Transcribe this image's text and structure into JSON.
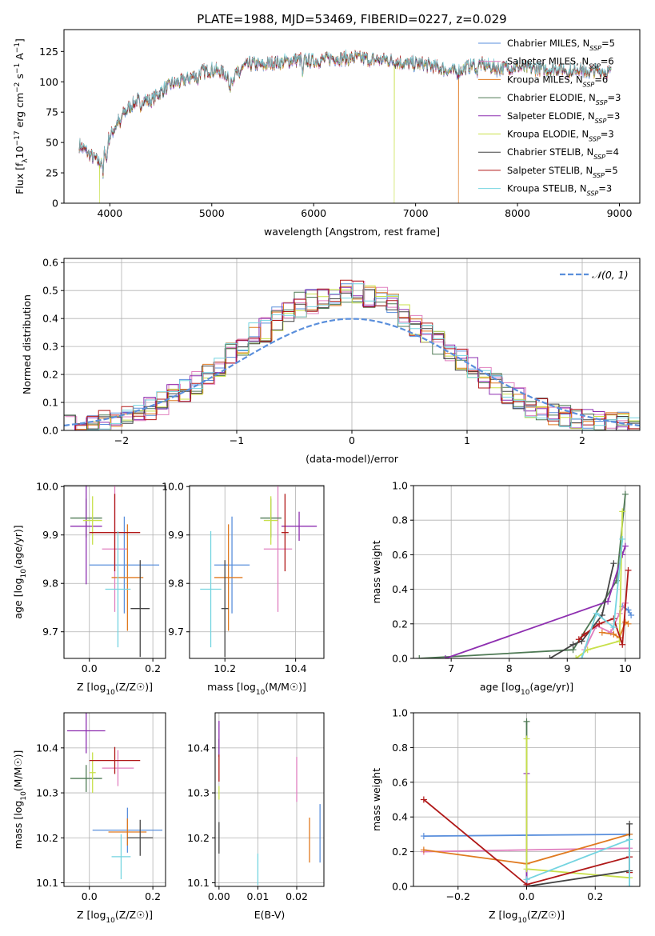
{
  "figure_title": "PLATE=1988, MJD=53469, FIBERID=0227, z=0.029",
  "colors": {
    "Chabrier MILES": "#5a8fdc",
    "Salpeter MILES": "#e07fbf",
    "Kroupa MILES": "#e07a20",
    "Chabrier ELODIE": "#4f7a55",
    "Salpeter ELODIE": "#8e2fb0",
    "Kroupa ELODIE": "#c8e04a",
    "Chabrier STELIB": "#444444",
    "Salpeter STELIB": "#b01818",
    "Kroupa STELIB": "#74d4e0",
    "gaussian": "#5a8fdc"
  },
  "chart_data": [
    {
      "id": "spectrum",
      "type": "line",
      "title": "",
      "xlabel": "wavelength [Angstrom, rest frame]",
      "ylabel": "Flux [f_λ 10^-17 erg cm^-2 s^-1 A^-1]",
      "xlim": [
        3550,
        9200
      ],
      "ylim": [
        0,
        143
      ],
      "xticks": [
        4000,
        5000,
        6000,
        7000,
        8000,
        9000
      ],
      "yticks": [
        0,
        25,
        50,
        75,
        100,
        125
      ],
      "legend_position": "top-right",
      "legend": [
        {
          "name": "Chabrier MILES",
          "label_main": "Chabrier MILES, N",
          "label_sub": "SSP",
          "label_tail": "=5"
        },
        {
          "name": "Salpeter MILES",
          "label_main": "Salpeter MILES, N",
          "label_sub": "SSP",
          "label_tail": "=6"
        },
        {
          "name": "Kroupa MILES",
          "label_main": "Kroupa MILES, N",
          "label_sub": "SSP",
          "label_tail": "=6"
        },
        {
          "name": "Chabrier ELODIE",
          "label_main": "Chabrier ELODIE, N",
          "label_sub": "SSP",
          "label_tail": "=3"
        },
        {
          "name": "Salpeter ELODIE",
          "label_main": "Salpeter ELODIE, N",
          "label_sub": "SSP",
          "label_tail": "=3"
        },
        {
          "name": "Kroupa ELODIE",
          "label_main": "Kroupa ELODIE, N",
          "label_sub": "SSP",
          "label_tail": "=3"
        },
        {
          "name": "Chabrier STELIB",
          "label_main": "Chabrier STELIB, N",
          "label_sub": "SSP",
          "label_tail": "=4"
        },
        {
          "name": "Salpeter STELIB",
          "label_main": "Salpeter STELIB, N",
          "label_sub": "SSP",
          "label_tail": "=5"
        },
        {
          "name": "Kroupa STELIB",
          "label_main": "Kroupa STELIB, N",
          "label_sub": "SSP",
          "label_tail": "=3"
        }
      ],
      "continuum": {
        "x": [
          3700,
          3800,
          3900,
          4000,
          4100,
          4200,
          4300,
          4400,
          4500,
          4600,
          4700,
          4800,
          4900,
          5000,
          5100,
          5200,
          5300,
          5400,
          5500,
          5600,
          5700,
          5800,
          5900,
          6000,
          6100,
          6200,
          6300,
          6400,
          6500,
          6600,
          6700,
          6800,
          6900,
          7000,
          7100,
          7200,
          7300,
          7400,
          7500,
          7600,
          7700,
          7800,
          7900,
          8000,
          8100,
          8200,
          8300,
          8400,
          8500,
          8600,
          8700,
          8800,
          8900
        ],
        "y": [
          48,
          40,
          33,
          55,
          70,
          80,
          86,
          84,
          92,
          98,
          100,
          104,
          108,
          110,
          108,
          103,
          112,
          115,
          113,
          116,
          116,
          118,
          118,
          117,
          118,
          120,
          119,
          120,
          119,
          118,
          118,
          117,
          115,
          115,
          114,
          112,
          110,
          108,
          112,
          115,
          113,
          111,
          112,
          112,
          111,
          111,
          110,
          111,
          110,
          111,
          108,
          109,
          108
        ]
      },
      "drops": [
        {
          "series": "Kroupa ELODIE",
          "x": 3900
        },
        {
          "series": "Kroupa ELODIE",
          "x": 6790
        },
        {
          "series": "Kroupa MILES",
          "x": 7420
        }
      ]
    },
    {
      "id": "residuals",
      "type": "histogram",
      "title": "",
      "xlabel": "(data-model)/error",
      "ylabel": "Normed distribution",
      "xlim": [
        -2.5,
        2.5
      ],
      "ylim": [
        0,
        0.615
      ],
      "xticks": [
        -2,
        -1,
        0,
        1,
        2
      ],
      "yticks": [
        0.0,
        0.1,
        0.2,
        0.3,
        0.4,
        0.5,
        0.6
      ],
      "grid": true,
      "bin_width": 0.1,
      "bins_from": -2.5,
      "legend_position": "top-right",
      "legend_label": "𝒩(0, 1)",
      "gaussian": {
        "mu": 0,
        "sigma": 1
      },
      "series": [
        {
          "name": "Chabrier MILES",
          "shift": 0.02
        },
        {
          "name": "Salpeter MILES",
          "shift": 0.05
        },
        {
          "name": "Kroupa MILES",
          "shift": 0.03
        },
        {
          "name": "Chabrier ELODIE",
          "shift": 0.0
        },
        {
          "name": "Salpeter ELODIE",
          "shift": -0.03
        },
        {
          "name": "Kroupa ELODIE",
          "shift": 0.01
        },
        {
          "name": "Chabrier STELIB",
          "shift": -0.01
        },
        {
          "name": "Salpeter STELIB",
          "shift": 0.0
        },
        {
          "name": "Kroupa STELIB",
          "shift": 0.02
        }
      ],
      "base_profile": [
        0.015,
        0.02,
        0.025,
        0.03,
        0.04,
        0.05,
        0.065,
        0.08,
        0.1,
        0.12,
        0.14,
        0.17,
        0.2,
        0.23,
        0.28,
        0.29,
        0.34,
        0.36,
        0.4,
        0.42,
        0.45,
        0.46,
        0.47,
        0.49,
        0.5,
        0.49,
        0.48,
        0.47,
        0.45,
        0.41,
        0.37,
        0.35,
        0.31,
        0.28,
        0.25,
        0.22,
        0.19,
        0.16,
        0.13,
        0.11,
        0.09,
        0.075,
        0.06,
        0.05,
        0.04,
        0.035,
        0.03,
        0.025,
        0.02,
        0.018
      ]
    },
    {
      "id": "age-vs-Z",
      "type": "errorbar",
      "xlabel": "Z [log10(Z/Z☉)]",
      "ylabel": "age  [log10(age/yr)]",
      "xlim": [
        -0.08,
        0.24
      ],
      "ylim": [
        9.645,
        10.002
      ],
      "xticks": [
        0.0,
        0.2
      ],
      "yticks": [
        9.7,
        9.8,
        9.9,
        10.0
      ],
      "grid": true,
      "points": [
        {
          "series": "Chabrier MILES",
          "x": 0.11,
          "y": 9.838,
          "xerr": 0.11,
          "yerr": 0.1
        },
        {
          "series": "Salpeter MILES",
          "x": 0.08,
          "y": 9.871,
          "xerr": 0.04,
          "yerr": 0.13
        },
        {
          "series": "Kroupa MILES",
          "x": 0.12,
          "y": 9.812,
          "xerr": 0.05,
          "yerr": 0.11
        },
        {
          "series": "Chabrier ELODIE",
          "x": -0.01,
          "y": 9.935,
          "xerr": 0.05,
          "yerr": 0.04
        },
        {
          "series": "Salpeter ELODIE",
          "x": -0.01,
          "y": 9.918,
          "xerr": 0.05,
          "yerr": 0.12
        },
        {
          "series": "Kroupa ELODIE",
          "x": 0.01,
          "y": 9.93,
          "xerr": 0.03,
          "yerr": 0.05
        },
        {
          "series": "Chabrier STELIB",
          "x": 0.16,
          "y": 9.748,
          "xerr": 0.03,
          "yerr": 0.1
        },
        {
          "series": "Salpeter STELIB",
          "x": 0.08,
          "y": 9.905,
          "xerr": 0.08,
          "yerr": 0.08
        },
        {
          "series": "Kroupa STELIB",
          "x": 0.09,
          "y": 9.788,
          "xerr": 0.04,
          "yerr": 0.12
        }
      ]
    },
    {
      "id": "age-vs-mass",
      "type": "errorbar",
      "xlabel": "mass [log10(M/M☉)]",
      "ylabel": "",
      "xlim": [
        10.1,
        10.48
      ],
      "ylim": [
        9.645,
        10.002
      ],
      "xticks": [
        10.2,
        10.4
      ],
      "yticks": [
        9.7,
        9.8,
        9.9,
        10.0
      ],
      "grid": true,
      "points": [
        {
          "series": "Chabrier MILES",
          "x": 10.22,
          "y": 9.838,
          "xerr": 0.05,
          "yerr": 0.1
        },
        {
          "series": "Salpeter MILES",
          "x": 10.35,
          "y": 9.871,
          "xerr": 0.04,
          "yerr": 0.13
        },
        {
          "series": "Kroupa MILES",
          "x": 10.21,
          "y": 9.812,
          "xerr": 0.04,
          "yerr": 0.11
        },
        {
          "series": "Chabrier ELODIE",
          "x": 10.33,
          "y": 9.935,
          "xerr": 0.03,
          "yerr": 0.04
        },
        {
          "series": "Salpeter ELODIE",
          "x": 10.41,
          "y": 9.918,
          "xerr": 0.05,
          "yerr": 0.03
        },
        {
          "series": "Kroupa ELODIE",
          "x": 10.33,
          "y": 9.93,
          "xerr": 0.02,
          "yerr": 0.05
        },
        {
          "series": "Chabrier STELIB",
          "x": 10.2,
          "y": 9.748,
          "xerr": 0.01,
          "yerr": 0.1
        },
        {
          "series": "Salpeter STELIB",
          "x": 10.37,
          "y": 9.905,
          "xerr": 0.01,
          "yerr": 0.08
        },
        {
          "series": "Kroupa STELIB",
          "x": 10.16,
          "y": 9.788,
          "xerr": 0.03,
          "yerr": 0.12
        }
      ]
    },
    {
      "id": "mass-weight-vs-age",
      "type": "line",
      "xlabel": "age  [log10(age/yr)]",
      "ylabel": "mass weight",
      "xlim": [
        6.35,
        10.25
      ],
      "ylim": [
        0,
        1.0
      ],
      "xticks": [
        7,
        8,
        9,
        10
      ],
      "yticks": [
        0.0,
        0.2,
        0.4,
        0.6,
        0.8,
        1.0
      ],
      "grid": true,
      "series": [
        {
          "name": "Chabrier MILES",
          "x": [
            9.95,
            10.05,
            10.1,
            10.05
          ],
          "y": [
            0.3,
            0.28,
            0.25,
            0.28
          ]
        },
        {
          "name": "Salpeter MILES",
          "x": [
            9.3,
            9.5,
            9.75,
            9.9,
            10.0
          ],
          "y": [
            0.05,
            0.19,
            0.15,
            0.26,
            0.32
          ]
        },
        {
          "name": "Kroupa MILES",
          "x": [
            9.6,
            9.8,
            9.9,
            10.0,
            10.05
          ],
          "y": [
            0.15,
            0.14,
            0.12,
            0.21,
            0.2
          ]
        },
        {
          "name": "Chabrier ELODIE",
          "x": [
            6.45,
            9.1,
            9.85,
            10.0
          ],
          "y": [
            0.0,
            0.05,
            0.45,
            0.95
          ]
        },
        {
          "name": "Salpeter ELODIE",
          "x": [
            6.9,
            9.7,
            9.95,
            10.0
          ],
          "y": [
            0.0,
            0.33,
            0.6,
            0.65
          ]
        },
        {
          "name": "Kroupa ELODIE",
          "x": [
            9.15,
            9.35,
            9.9,
            9.95
          ],
          "y": [
            0.0,
            0.05,
            0.1,
            0.85
          ]
        },
        {
          "name": "Chabrier STELIB",
          "x": [
            8.7,
            9.1,
            9.25,
            9.6,
            9.8
          ],
          "y": [
            0.0,
            0.08,
            0.1,
            0.25,
            0.55
          ]
        },
        {
          "name": "Salpeter STELIB",
          "x": [
            9.2,
            9.3,
            9.55,
            9.8,
            9.95,
            10.05
          ],
          "y": [
            0.11,
            0.14,
            0.2,
            0.23,
            0.08,
            0.51
          ]
        },
        {
          "name": "Kroupa STELIB",
          "x": [
            9.25,
            9.5,
            9.8,
            9.95
          ],
          "y": [
            0.0,
            0.26,
            0.18,
            0.69
          ]
        }
      ]
    },
    {
      "id": "mass-vs-Z",
      "type": "errorbar",
      "xlabel": "Z [log10(Z/Z☉)]",
      "ylabel": "mass [log10(M/M☉)]",
      "xlim": [
        -0.08,
        0.24
      ],
      "ylim": [
        10.092,
        10.478
      ],
      "xticks": [
        0.0,
        0.2
      ],
      "yticks": [
        10.1,
        10.2,
        10.3,
        10.4
      ],
      "grid": true,
      "points": [
        {
          "series": "Chabrier MILES",
          "x": 0.12,
          "y": 10.217,
          "xerr": 0.11,
          "yerr": 0.05
        },
        {
          "series": "Salpeter MILES",
          "x": 0.09,
          "y": 10.355,
          "xerr": 0.05,
          "yerr": 0.04
        },
        {
          "series": "Kroupa MILES",
          "x": 0.12,
          "y": 10.213,
          "xerr": 0.06,
          "yerr": 0.03
        },
        {
          "series": "Chabrier ELODIE",
          "x": -0.01,
          "y": 10.332,
          "xerr": 0.05,
          "yerr": 0.03
        },
        {
          "series": "Salpeter ELODIE",
          "x": -0.01,
          "y": 10.438,
          "xerr": 0.06,
          "yerr": 0.05
        },
        {
          "series": "Kroupa ELODIE",
          "x": 0.01,
          "y": 10.345,
          "xerr": 0.01,
          "yerr": 0.045
        },
        {
          "series": "Chabrier STELIB",
          "x": 0.16,
          "y": 10.2,
          "xerr": 0.04,
          "yerr": 0.04
        },
        {
          "series": "Salpeter STELIB",
          "x": 0.08,
          "y": 10.372,
          "xerr": 0.08,
          "yerr": 0.03
        },
        {
          "series": "Kroupa STELIB",
          "x": 0.1,
          "y": 10.158,
          "xerr": 0.03,
          "yerr": 0.05
        }
      ]
    },
    {
      "id": "mass-vs-EBV",
      "type": "errorbar",
      "xlabel": "E(B-V)",
      "ylabel": "",
      "xlim": [
        -0.001,
        0.027
      ],
      "ylim": [
        10.092,
        10.478
      ],
      "xticks": [
        0.0,
        0.01,
        0.02
      ],
      "yticks": [
        10.1,
        10.2,
        10.3,
        10.4
      ],
      "grid": true,
      "points": [
        {
          "series": "Chabrier MILES",
          "x": 0.026,
          "y": 10.21,
          "xerr": 0.0,
          "yerr": 0.065
        },
        {
          "series": "Salpeter MILES",
          "x": 0.02,
          "y": 10.33,
          "xerr": 0.0,
          "yerr": 0.05
        },
        {
          "series": "Kroupa MILES",
          "x": 0.0233,
          "y": 10.195,
          "xerr": 0.0,
          "yerr": 0.05
        },
        {
          "series": "Chabrier ELODIE",
          "x": 0.0,
          "y": 10.4,
          "xerr": 0.0,
          "yerr": 0.02
        },
        {
          "series": "Salpeter ELODIE",
          "x": 0.0,
          "y": 10.42,
          "xerr": 0.0,
          "yerr": 0.04
        },
        {
          "series": "Kroupa ELODIE",
          "x": 0.0,
          "y": 10.3,
          "xerr": 0.0,
          "yerr": 0.015
        },
        {
          "series": "Chabrier STELIB",
          "x": 0.0,
          "y": 10.2,
          "xerr": 0.0,
          "yerr": 0.035
        },
        {
          "series": "Salpeter STELIB",
          "x": 0.0,
          "y": 10.355,
          "xerr": 0.0,
          "yerr": 0.03
        },
        {
          "series": "Kroupa STELIB",
          "x": 0.01,
          "y": 10.13,
          "xerr": 0.0,
          "yerr": 0.035
        }
      ]
    },
    {
      "id": "mass-weight-vs-Z",
      "type": "line",
      "xlabel": "Z [log10(Z/Z☉)]",
      "ylabel": "mass weight",
      "xlim": [
        -0.33,
        0.33
      ],
      "ylim": [
        0,
        1.0
      ],
      "xticks": [
        -0.2,
        0.0,
        0.2
      ],
      "yticks": [
        0.0,
        0.2,
        0.4,
        0.6,
        0.8,
        1.0
      ],
      "grid": true,
      "series": [
        {
          "name": "Chabrier MILES",
          "x": [
            -0.3,
            0.3
          ],
          "y": [
            0.29,
            0.3
          ]
        },
        {
          "name": "Salpeter MILES",
          "x": [
            -0.3,
            0.0,
            0.3
          ],
          "y": [
            0.2,
            0.21,
            0.22
          ]
        },
        {
          "name": "Kroupa MILES",
          "x": [
            -0.3,
            0.0,
            0.3
          ],
          "y": [
            0.21,
            0.13,
            0.3
          ]
        },
        {
          "name": "Chabrier ELODIE",
          "x": [
            0.0,
            0.0
          ],
          "y": [
            0.0,
            0.95
          ]
        },
        {
          "name": "Salpeter ELODIE",
          "x": [
            0.0,
            0.0
          ],
          "y": [
            0.0,
            0.65
          ]
        },
        {
          "name": "Kroupa ELODIE",
          "x": [
            0.0,
            0.0,
            0.3
          ],
          "y": [
            0.85,
            0.1,
            0.05
          ]
        },
        {
          "name": "Chabrier STELIB",
          "x": [
            0.0,
            0.3,
            0.3
          ],
          "y": [
            0.0,
            0.09,
            0.36
          ]
        },
        {
          "name": "Salpeter STELIB",
          "x": [
            -0.3,
            0.0,
            0.3,
            0.3
          ],
          "y": [
            0.5,
            0.01,
            0.17,
            0.08
          ]
        },
        {
          "name": "Kroupa STELIB",
          "x": [
            0.0,
            0.3,
            0.3
          ],
          "y": [
            0.04,
            0.27,
            0.0
          ]
        }
      ]
    }
  ]
}
